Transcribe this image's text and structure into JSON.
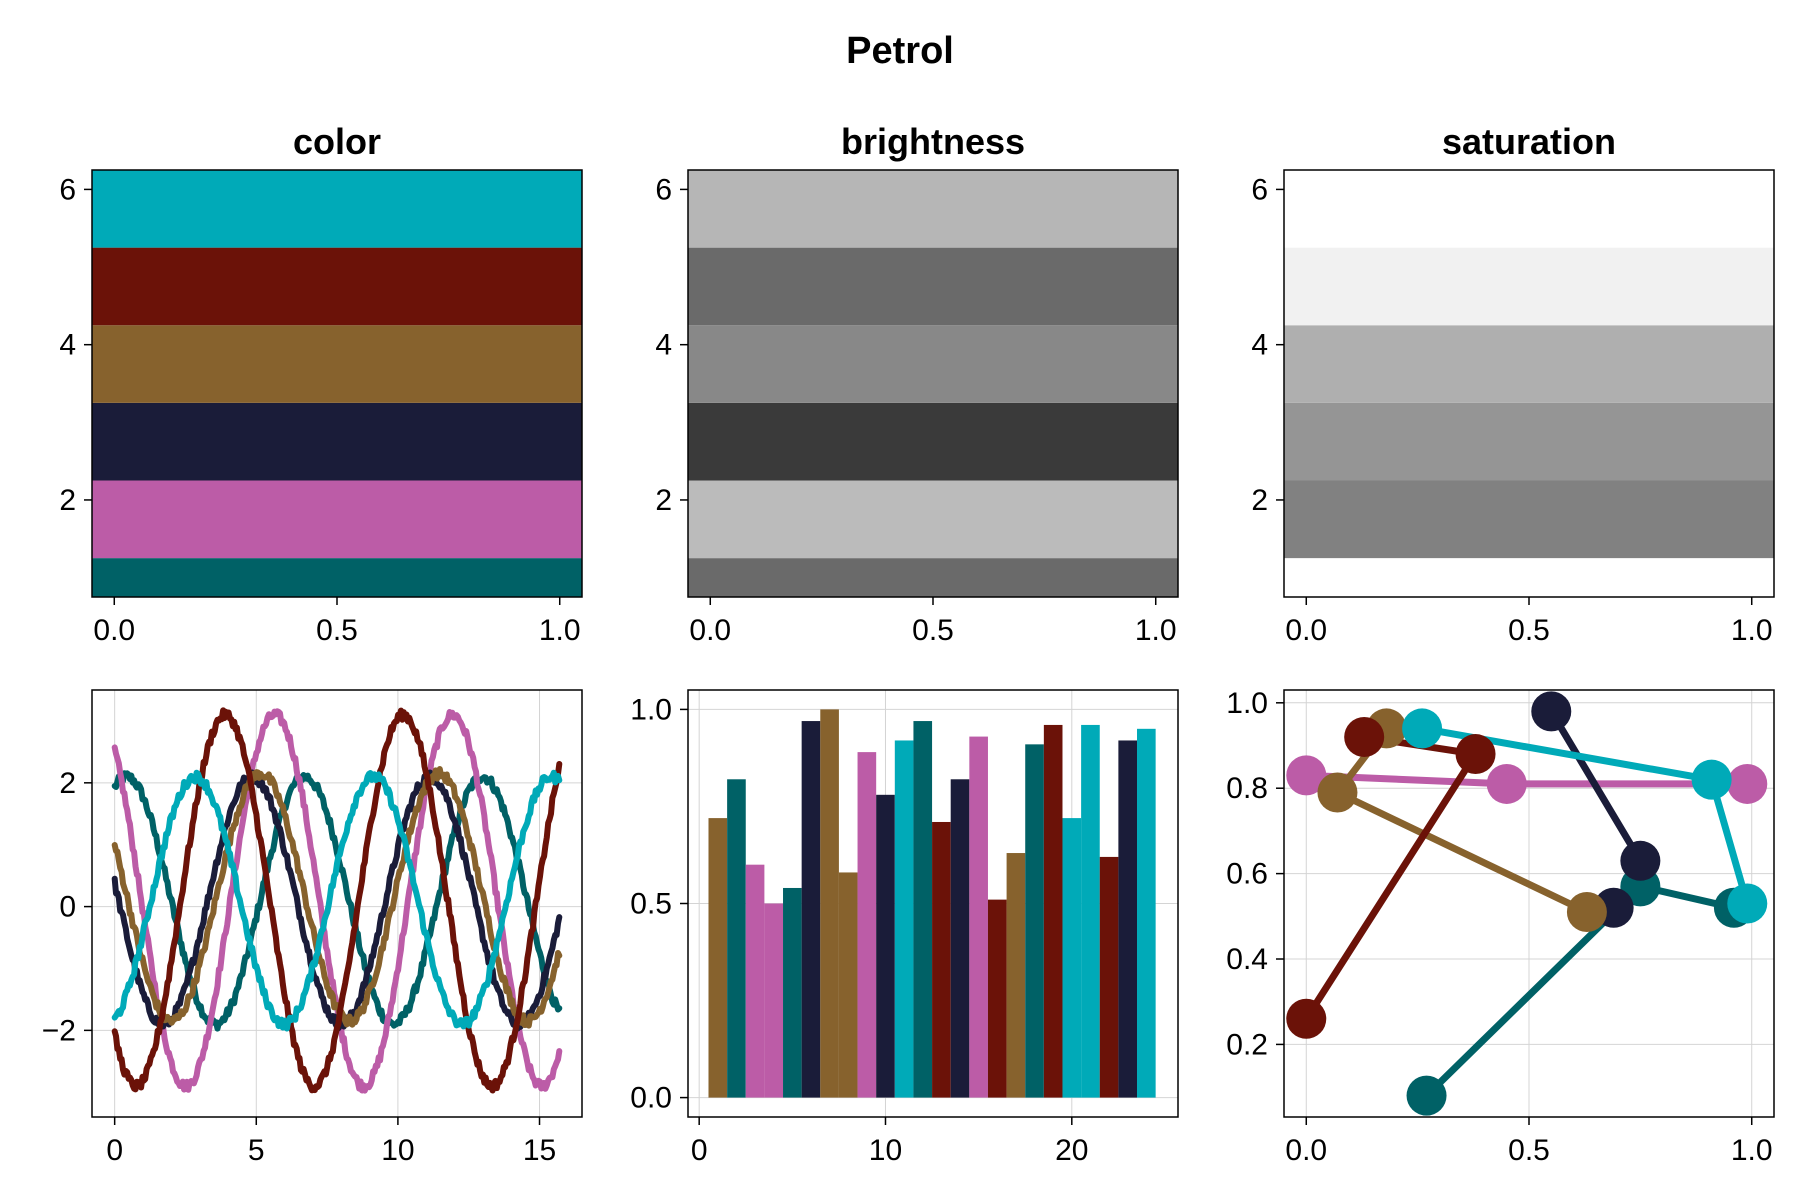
{
  "figure": {
    "title": "Petrol"
  },
  "palette": {
    "name": "Petrol",
    "colors": [
      "#006166",
      "#BC5CA7",
      "#1A1C39",
      "#87622D",
      "#6B1208",
      "#00AAB8"
    ]
  },
  "chart_data": [
    {
      "type": "area",
      "title": "color",
      "xlabel": "",
      "ylabel": "",
      "xlim": [
        -0.05,
        1.05
      ],
      "ylim": [
        0.75,
        6.25
      ],
      "xticks": [
        0.0,
        0.5,
        1.0
      ],
      "xtick_labels": [
        "0.0",
        "0.5",
        "1.0"
      ],
      "yticks": [
        2,
        4,
        6
      ],
      "ytick_labels": [
        "2",
        "4",
        "6"
      ],
      "grid": false,
      "bands": [
        {
          "y0": 0.5,
          "y1": 1.25,
          "color": "#006166"
        },
        {
          "y0": 1.25,
          "y1": 2.25,
          "color": "#BC5CA7"
        },
        {
          "y0": 2.25,
          "y1": 3.25,
          "color": "#1A1C39"
        },
        {
          "y0": 3.25,
          "y1": 4.25,
          "color": "#87622D"
        },
        {
          "y0": 4.25,
          "y1": 5.25,
          "color": "#6B1208"
        },
        {
          "y0": 5.25,
          "y1": 6.5,
          "color": "#00AAB8"
        }
      ]
    },
    {
      "type": "area",
      "title": "brightness",
      "xlabel": "",
      "ylabel": "",
      "xlim": [
        -0.05,
        1.05
      ],
      "ylim": [
        0.75,
        6.25
      ],
      "xticks": [
        0.0,
        0.5,
        1.0
      ],
      "xtick_labels": [
        "0.0",
        "0.5",
        "1.0"
      ],
      "yticks": [
        2,
        4,
        6
      ],
      "ytick_labels": [
        "2",
        "4",
        "6"
      ],
      "grid": false,
      "bands": [
        {
          "y0": 0.5,
          "y1": 1.25,
          "color": "#6A6A6A"
        },
        {
          "y0": 1.25,
          "y1": 2.25,
          "color": "#BBBBBB"
        },
        {
          "y0": 2.25,
          "y1": 3.25,
          "color": "#3A3A3A"
        },
        {
          "y0": 3.25,
          "y1": 4.25,
          "color": "#888888"
        },
        {
          "y0": 4.25,
          "y1": 5.25,
          "color": "#6A6A6A"
        },
        {
          "y0": 5.25,
          "y1": 6.5,
          "color": "#B6B6B6"
        }
      ]
    },
    {
      "type": "area",
      "title": "saturation",
      "xlabel": "",
      "ylabel": "",
      "xlim": [
        -0.05,
        1.05
      ],
      "ylim": [
        0.75,
        6.25
      ],
      "xticks": [
        0.0,
        0.5,
        1.0
      ],
      "xtick_labels": [
        "0.0",
        "0.5",
        "1.0"
      ],
      "yticks": [
        2,
        4,
        6
      ],
      "ytick_labels": [
        "2",
        "4",
        "6"
      ],
      "grid": false,
      "bands": [
        {
          "y0": 0.5,
          "y1": 1.25,
          "color": "#FFFFFF"
        },
        {
          "y0": 1.25,
          "y1": 2.25,
          "color": "#818181"
        },
        {
          "y0": 2.25,
          "y1": 3.25,
          "color": "#959595"
        },
        {
          "y0": 3.25,
          "y1": 4.25,
          "color": "#AFAFAF"
        },
        {
          "y0": 4.25,
          "y1": 5.25,
          "color": "#F1F1F1"
        },
        {
          "y0": 5.25,
          "y1": 6.5,
          "color": "#FFFFFF"
        }
      ]
    },
    {
      "type": "line",
      "title": "",
      "xlabel": "",
      "ylabel": "",
      "xlim": [
        -0.8,
        16.5
      ],
      "ylim": [
        -3.4,
        3.5
      ],
      "xticks": [
        0,
        5,
        10,
        15
      ],
      "xtick_labels": [
        "0",
        "5",
        "10",
        "15"
      ],
      "yticks": [
        -2,
        0,
        2
      ],
      "ytick_labels": [
        "−2",
        "0",
        "2"
      ],
      "grid": true,
      "x_range": [
        0,
        15.7
      ],
      "series": [
        {
          "color": "#006166",
          "amplitude": 2.0,
          "phase": 1.15,
          "offset": 0.1,
          "noise": 0.08
        },
        {
          "color": "#BC5CA7",
          "amplitude": 3.0,
          "phase": 2.2,
          "offset": 0.1,
          "noise": 0.08
        },
        {
          "color": "#1A1C39",
          "amplitude": 2.0,
          "phase": 3.0,
          "offset": 0.1,
          "noise": 0.08
        },
        {
          "color": "#87622D",
          "amplitude": 2.0,
          "phase": 2.7,
          "offset": 0.15,
          "noise": 0.08
        },
        {
          "color": "#6B1208",
          "amplitude": 3.0,
          "phase": 3.95,
          "offset": 0.1,
          "noise": 0.08
        },
        {
          "color": "#00AAB8",
          "amplitude": 2.0,
          "phase": 5.0,
          "offset": 0.1,
          "noise": 0.08
        }
      ]
    },
    {
      "type": "bar",
      "title": "",
      "xlabel": "",
      "ylabel": "",
      "xlim": [
        -0.6,
        25.7
      ],
      "ylim": [
        -0.05,
        1.05
      ],
      "xticks": [
        0,
        10,
        20
      ],
      "xtick_labels": [
        "0",
        "10",
        "20"
      ],
      "yticks": [
        0.0,
        0.5,
        1.0
      ],
      "ytick_labels": [
        "0.0",
        "0.5",
        "1.0"
      ],
      "grid": true,
      "bars": [
        {
          "x": 1,
          "value": 0.72,
          "color": "#87622D"
        },
        {
          "x": 2,
          "value": 0.82,
          "color": "#006166"
        },
        {
          "x": 3,
          "value": 0.6,
          "color": "#BC5CA7"
        },
        {
          "x": 4,
          "value": 0.5,
          "color": "#BC5CA7"
        },
        {
          "x": 5,
          "value": 0.54,
          "color": "#006166"
        },
        {
          "x": 6,
          "value": 0.97,
          "color": "#1A1C39"
        },
        {
          "x": 7,
          "value": 1.0,
          "color": "#87622D"
        },
        {
          "x": 8,
          "value": 0.58,
          "color": "#87622D"
        },
        {
          "x": 9,
          "value": 0.89,
          "color": "#BC5CA7"
        },
        {
          "x": 10,
          "value": 0.78,
          "color": "#1A1C39"
        },
        {
          "x": 11,
          "value": 0.92,
          "color": "#00AAB8"
        },
        {
          "x": 12,
          "value": 0.97,
          "color": "#006166"
        },
        {
          "x": 13,
          "value": 0.71,
          "color": "#6B1208"
        },
        {
          "x": 14,
          "value": 0.82,
          "color": "#1A1C39"
        },
        {
          "x": 15,
          "value": 0.93,
          "color": "#BC5CA7"
        },
        {
          "x": 16,
          "value": 0.51,
          "color": "#6B1208"
        },
        {
          "x": 17,
          "value": 0.63,
          "color": "#87622D"
        },
        {
          "x": 18,
          "value": 0.91,
          "color": "#006166"
        },
        {
          "x": 19,
          "value": 0.96,
          "color": "#6B1208"
        },
        {
          "x": 20,
          "value": 0.72,
          "color": "#00AAB8"
        },
        {
          "x": 21,
          "value": 0.96,
          "color": "#00AAB8"
        },
        {
          "x": 22,
          "value": 0.62,
          "color": "#6B1208"
        },
        {
          "x": 23,
          "value": 0.92,
          "color": "#1A1C39"
        },
        {
          "x": 24,
          "value": 0.95,
          "color": "#00AAB8"
        }
      ]
    },
    {
      "type": "scatter",
      "title": "",
      "xlabel": "",
      "ylabel": "",
      "xlim": [
        -0.05,
        1.05
      ],
      "ylim": [
        0.03,
        1.03
      ],
      "xticks": [
        0.0,
        0.5,
        1.0
      ],
      "xtick_labels": [
        "0.0",
        "0.5",
        "1.0"
      ],
      "yticks": [
        0.2,
        0.4,
        0.6,
        0.8,
        1.0
      ],
      "ytick_labels": [
        "0.2",
        "0.4",
        "0.6",
        "0.8",
        "1.0"
      ],
      "grid": true,
      "series": [
        {
          "color": "#006166",
          "points": [
            [
              0.27,
              0.08
            ],
            [
              0.75,
              0.57
            ],
            [
              0.96,
              0.52
            ]
          ]
        },
        {
          "color": "#BC5CA7",
          "points": [
            [
              0.0,
              0.83
            ],
            [
              0.45,
              0.81
            ],
            [
              0.99,
              0.81
            ]
          ]
        },
        {
          "color": "#1A1C39",
          "points": [
            [
              0.55,
              0.98
            ],
            [
              0.75,
              0.63
            ],
            [
              0.69,
              0.52
            ]
          ]
        },
        {
          "color": "#87622D",
          "points": [
            [
              0.18,
              0.94
            ],
            [
              0.07,
              0.79
            ],
            [
              0.63,
              0.51
            ]
          ]
        },
        {
          "color": "#6B1208",
          "points": [
            [
              0.13,
              0.92
            ],
            [
              0.38,
              0.88
            ],
            [
              0.0,
              0.26
            ]
          ]
        },
        {
          "color": "#00AAB8",
          "points": [
            [
              0.26,
              0.94
            ],
            [
              0.91,
              0.82
            ],
            [
              0.99,
              0.53
            ]
          ]
        }
      ]
    }
  ]
}
